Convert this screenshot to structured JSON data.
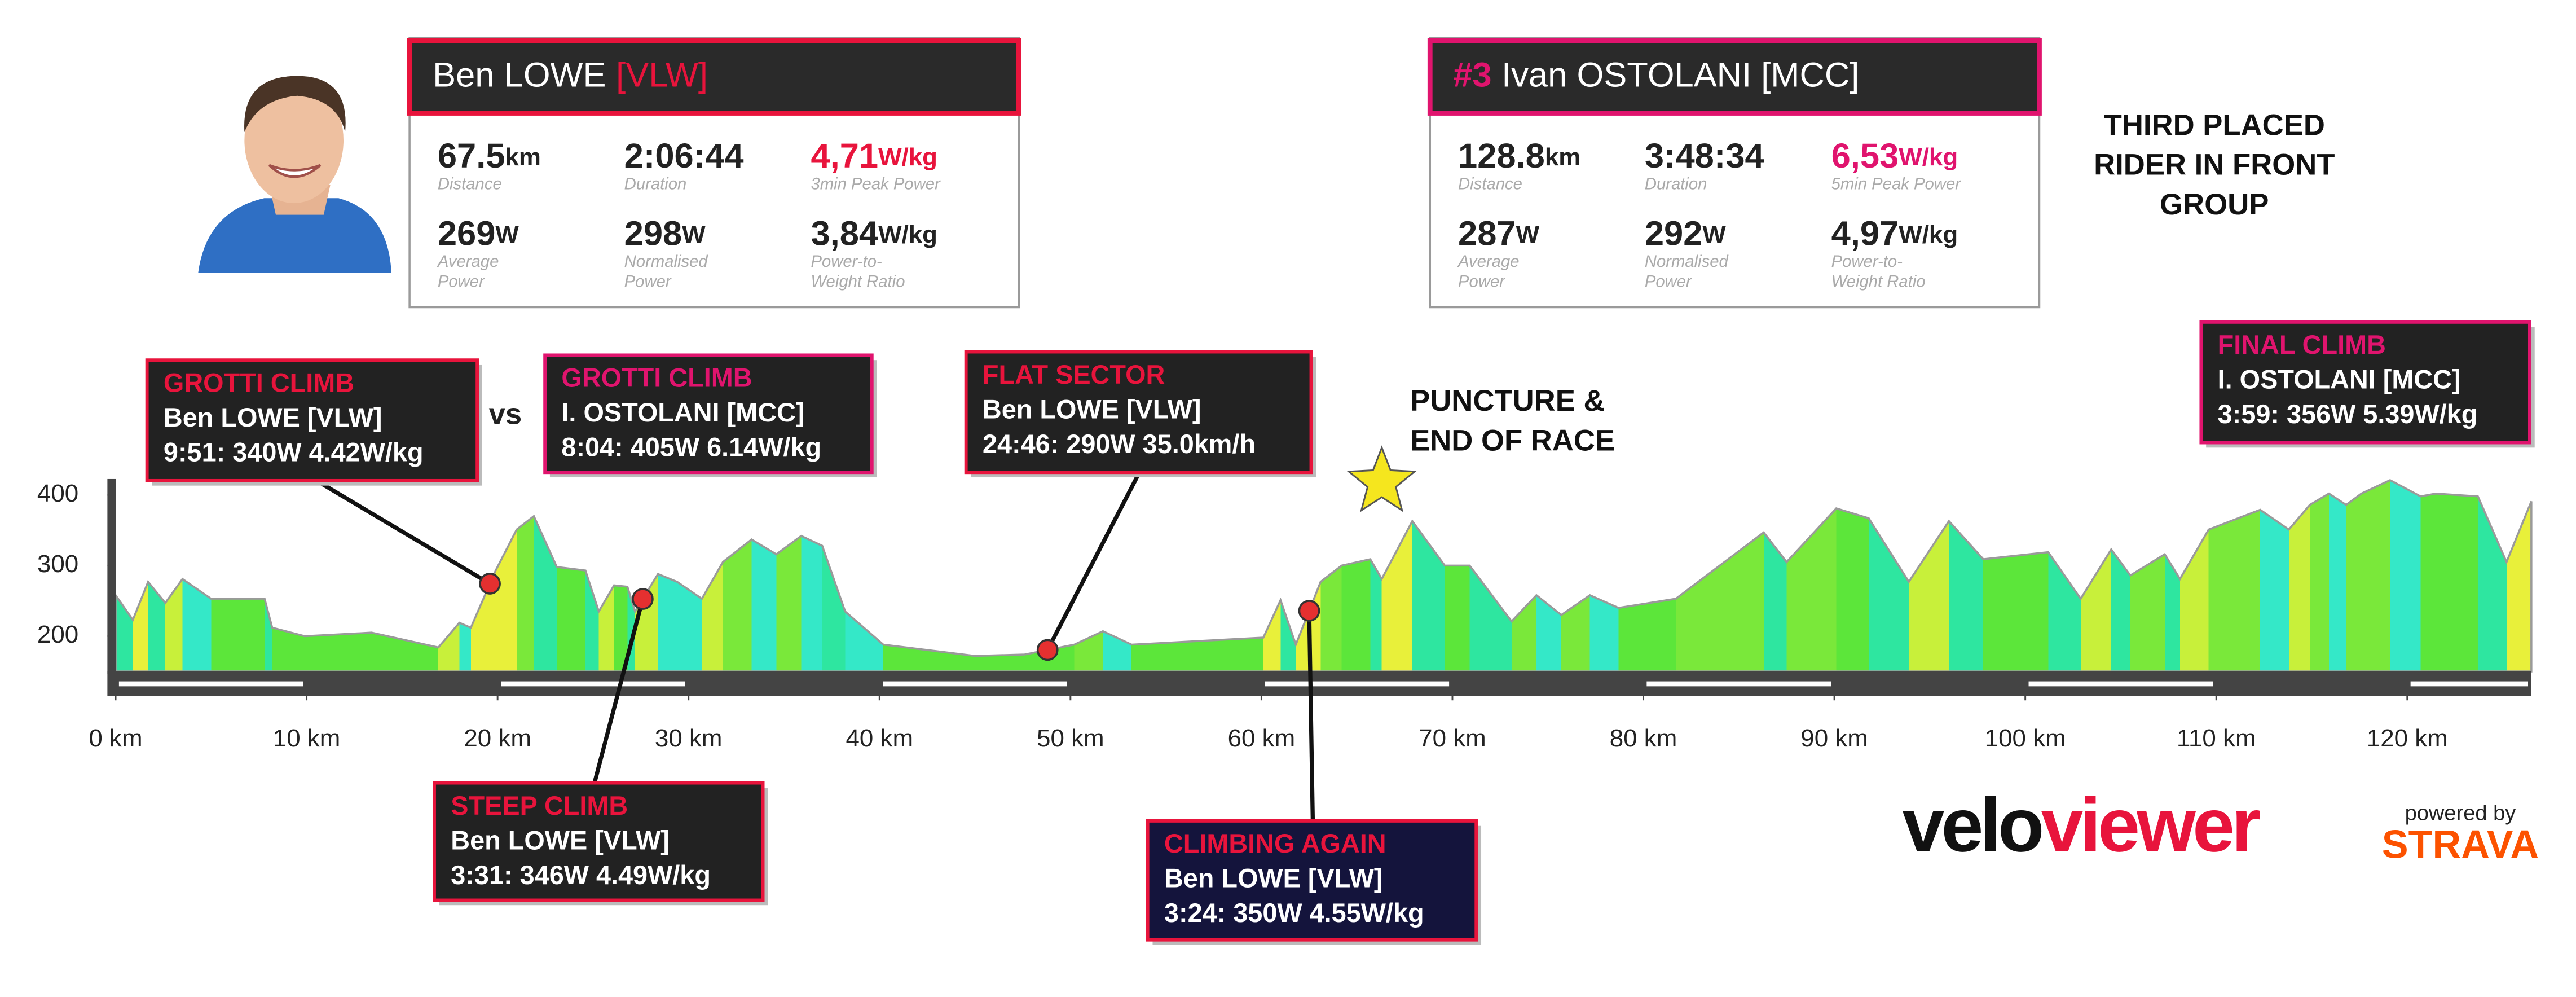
{
  "riders": [
    {
      "name": "Ben LOWE",
      "team": "[VLW]",
      "color": "#e8143c",
      "stats": [
        {
          "value": "67.5",
          "unit": "km",
          "label": [
            "Distance"
          ]
        },
        {
          "value": "2:06:44",
          "label": [
            "Duration"
          ]
        },
        {
          "value": "4,71",
          "unit": "W/kg",
          "label": [
            "3min Peak Power"
          ],
          "highlight": true
        },
        {
          "value": "269",
          "unit": "W",
          "label": [
            "Average",
            "Power"
          ]
        },
        {
          "value": "298",
          "unit": "W",
          "label": [
            "Normalised",
            "Power"
          ]
        },
        {
          "value": "3,84",
          "unit": "W/kg",
          "label": [
            "Power-to-",
            "Weight Ratio"
          ]
        }
      ]
    },
    {
      "rank": "#3",
      "name": "Ivan OSTOLANI [MCC]",
      "color": "#e0146e",
      "stats": [
        {
          "value": "128.8",
          "unit": "km",
          "label": [
            "Distance"
          ]
        },
        {
          "value": "3:48:34",
          "label": [
            "Duration"
          ]
        },
        {
          "value": "6,53",
          "unit": "W/kg",
          "label": [
            "5min Peak Power"
          ],
          "highlight": true
        },
        {
          "value": "287",
          "unit": "W",
          "label": [
            "Average",
            "Power"
          ]
        },
        {
          "value": "292",
          "unit": "W",
          "label": [
            "Normalised",
            "Power"
          ]
        },
        {
          "value": "4,97",
          "unit": "W/kg",
          "label": [
            "Power-to-",
            "Weight Ratio"
          ]
        }
      ]
    }
  ],
  "note": [
    "THIRD PLACED",
    "RIDER IN FRONT",
    "GROUP"
  ],
  "vs": "vs",
  "puncture": {
    "lines": [
      "PUNCTURE &",
      "END OF RACE"
    ],
    "x": 66.3
  },
  "annotations": [
    {
      "title": "GROTTI CLIMB",
      "rider": "Ben LOWE [VLW]",
      "stats": "9:51: 340W 4.42W/kg",
      "title_color": "#e8143c",
      "border": "#e8143c",
      "bg": "#222222",
      "x": 19.6
    },
    {
      "title": "GROTTI CLIMB",
      "rider": "I. OSTOLANI [MCC]",
      "stats": "8:04: 405W 6.14W/kg",
      "title_color": "#e0146e",
      "border": "#e0146e",
      "bg": "#222222"
    },
    {
      "title": "FLAT SECTOR",
      "rider": "Ben LOWE [VLW]",
      "stats": "24:46: 290W 35.0km/h",
      "title_color": "#e8143c",
      "border": "#e8143c",
      "bg": "#222222",
      "x": 48.8
    },
    {
      "title": "FINAL CLIMB",
      "rider": "I. OSTOLANI [MCC]",
      "stats": "3:59: 356W 5.39W/kg",
      "title_color": "#e0146e",
      "border": "#e0146e",
      "bg": "#222222"
    },
    {
      "title": "STEEP CLIMB",
      "rider": "Ben LOWE [VLW]",
      "stats": "3:31: 346W 4.49W/kg",
      "title_color": "#e8143c",
      "border": "#e8143c",
      "bg": "#222222",
      "x": 27.6
    },
    {
      "title": "CLIMBING AGAIN",
      "rider": "Ben LOWE [VLW]",
      "stats": "3:24: 350W 4.55W/kg",
      "title_color": "#e8143c",
      "border": "#e8143c",
      "bg": "#14143c",
      "x": 62.5
    }
  ],
  "logo": {
    "velo": "velo",
    "viewer": "viewer",
    "powered": "powered by",
    "strava": "STRAVA"
  },
  "chart_data": {
    "type": "area",
    "x": [
      0,
      0.9,
      1.7,
      2.6,
      3.5,
      5.0,
      7.8,
      8.2,
      9.9,
      13.4,
      16.9,
      18.0,
      18.6,
      19.9,
      21.0,
      21.9,
      23.1,
      24.6,
      25.3,
      26.1,
      26.8,
      27.2,
      28.4,
      29.4,
      30.7,
      31.8,
      33.3,
      34.6,
      35.9,
      37.0,
      38.2,
      40.2,
      45.0,
      47.6,
      50.2,
      51.7,
      53.2,
      60.1,
      61.0,
      61.8,
      63.1,
      64.2,
      65.7,
      66.3,
      67.9,
      69.6,
      70.9,
      73.1,
      74.4,
      75.7,
      77.2,
      78.7,
      81.7,
      86.3,
      87.5,
      90.1,
      91.8,
      93.9,
      96.0,
      97.8,
      101.2,
      102.9,
      104.5,
      105.5,
      107.3,
      108.1,
      109.6,
      112.3,
      113.8,
      114.9,
      115.9,
      116.8,
      117.6,
      119.1,
      120.7,
      121.5,
      123.7,
      125.2,
      126.5
    ],
    "values": [
      258,
      223,
      277,
      247,
      281,
      253,
      253,
      212,
      200,
      205,
      184,
      219,
      212,
      293,
      351,
      370,
      298,
      293,
      235,
      272,
      270,
      235,
      288,
      277,
      253,
      305,
      337,
      316,
      342,
      328,
      235,
      188,
      172,
      174,
      188,
      207,
      188,
      198,
      251,
      188,
      277,
      300,
      309,
      281,
      363,
      300,
      300,
      221,
      258,
      230,
      258,
      240,
      253,
      347,
      305,
      381,
      367,
      277,
      363,
      309,
      319,
      253,
      323,
      286,
      316,
      281,
      351,
      379,
      351,
      386,
      402,
      386,
      402,
      421,
      398,
      402,
      398,
      305,
      391
    ],
    "xlim": [
      0,
      126.5
    ],
    "ylim": [
      150,
      450
    ],
    "yticks": [
      200,
      300,
      400
    ],
    "xticks": [
      {
        "value": 0,
        "label": "0 km"
      },
      {
        "value": 10,
        "label": "10 km"
      },
      {
        "value": 20,
        "label": "20 km"
      },
      {
        "value": 30,
        "label": "30 km"
      },
      {
        "value": 40,
        "label": "40 km"
      },
      {
        "value": 50,
        "label": "50 km"
      },
      {
        "value": 60,
        "label": "60 km"
      },
      {
        "value": 70,
        "label": "70 km"
      },
      {
        "value": 80,
        "label": "80 km"
      },
      {
        "value": 90,
        "label": "90 km"
      },
      {
        "value": 100,
        "label": "100 km"
      },
      {
        "value": 110,
        "label": "110 km"
      },
      {
        "value": 120,
        "label": "120 km"
      }
    ]
  }
}
